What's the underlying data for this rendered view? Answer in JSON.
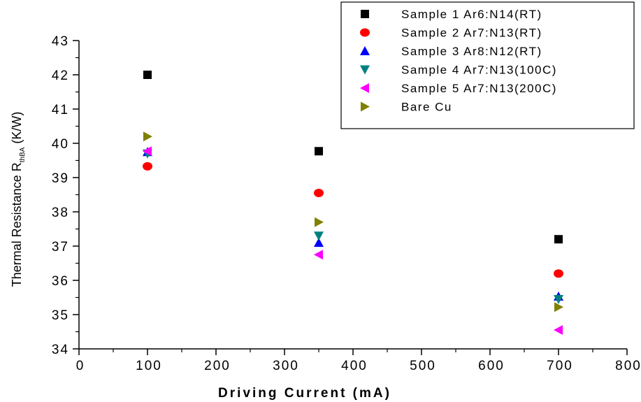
{
  "chart_data": {
    "type": "scatter",
    "title": "",
    "xlabel": "Driving Current (mA)",
    "ylabel": {
      "main": "Thermal Resistance R",
      "subscript": "thBA",
      "unit": " (K/W)"
    },
    "xlim": [
      0,
      800
    ],
    "ylim": [
      34,
      43
    ],
    "xticks": [
      "0",
      "100",
      "200",
      "300",
      "400",
      "500",
      "600",
      "700",
      "800"
    ],
    "yticks": [
      "34",
      "35",
      "36",
      "37",
      "38",
      "39",
      "40",
      "41",
      "42",
      "43"
    ],
    "grid": false,
    "legend_position": "top-right",
    "series": [
      {
        "name": "Sample 1 Ar6:N14(RT)",
        "marker": "square",
        "color": "#000000",
        "points": [
          [
            100,
            42.0
          ],
          [
            350,
            39.77
          ],
          [
            700,
            37.2
          ]
        ]
      },
      {
        "name": "Sample 2 Ar7:N13(RT)",
        "marker": "circle",
        "color": "#ff0000",
        "points": [
          [
            100,
            39.33
          ],
          [
            350,
            38.55
          ],
          [
            700,
            36.2
          ]
        ]
      },
      {
        "name": "Sample 3 Ar8:N12(RT)",
        "marker": "triangle-up",
        "color": "#0000ff",
        "points": [
          [
            100,
            39.75
          ],
          [
            350,
            37.1
          ],
          [
            700,
            35.53
          ]
        ]
      },
      {
        "name": "Sample 4 Ar7:N13(100C)",
        "marker": "triangle-down",
        "color": "#008080",
        "points": [
          [
            100,
            39.7
          ],
          [
            350,
            37.3
          ],
          [
            700,
            35.45
          ]
        ]
      },
      {
        "name": "Sample 5 Ar7:N13(200C)",
        "marker": "triangle-left",
        "color": "#ff00ff",
        "points": [
          [
            100,
            39.77
          ],
          [
            350,
            36.75
          ],
          [
            700,
            34.55
          ]
        ]
      },
      {
        "name": "Bare Cu",
        "marker": "triangle-right",
        "color": "#808000",
        "points": [
          [
            100,
            40.2
          ],
          [
            350,
            37.7
          ],
          [
            700,
            35.22
          ]
        ]
      }
    ]
  }
}
